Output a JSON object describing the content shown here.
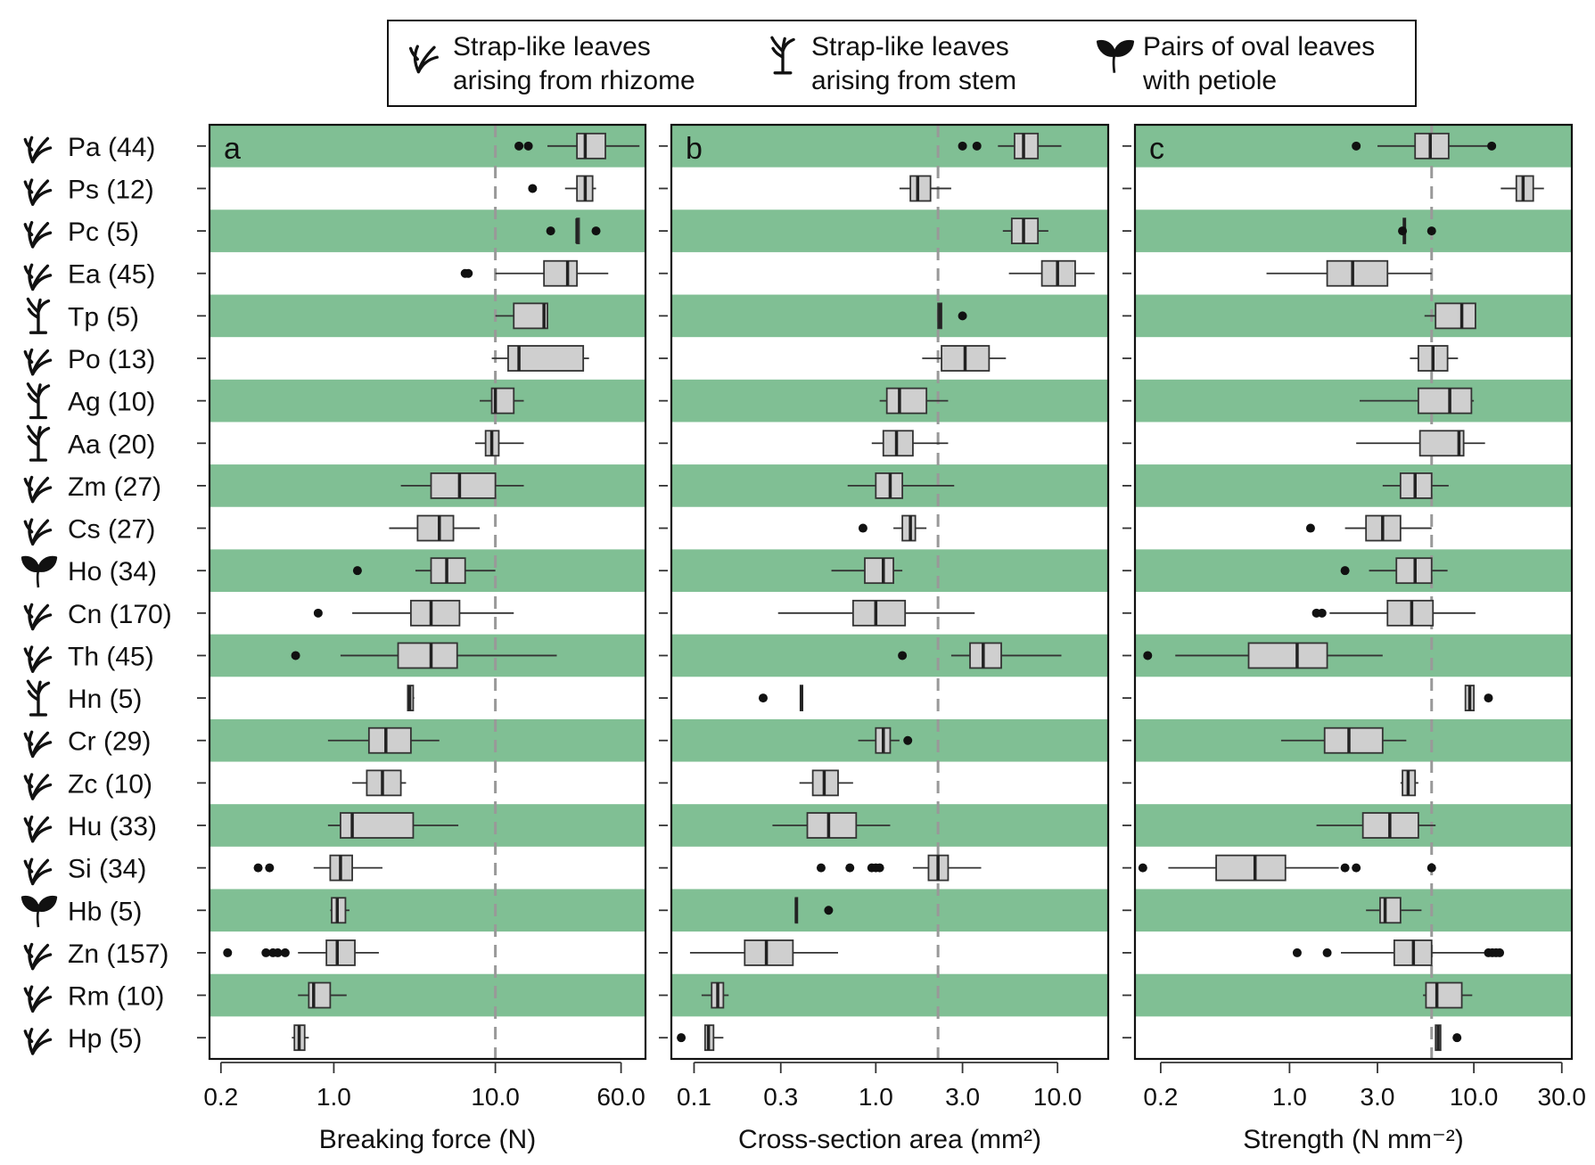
{
  "legend": {
    "items": [
      {
        "icon": "rhizome-leaf-icon",
        "line1": "Strap-like leaves",
        "line2": "arising from rhizome"
      },
      {
        "icon": "stem-leaf-icon",
        "line1": "Strap-like leaves",
        "line2": "arising from stem"
      },
      {
        "icon": "oval-leaf-icon",
        "line1": "Pairs of oval leaves",
        "line2": "with petiole"
      }
    ]
  },
  "colors": {
    "band_green": "#80bf94",
    "box_fill": "#cfcfcf",
    "box_stroke": "#333333",
    "dashed_line": "#999999"
  },
  "chart_data": [
    {
      "panel": "a",
      "type": "boxplot",
      "xlabel": "Breaking force (N)",
      "xscale": "log",
      "xlim": [
        0.17,
        85
      ],
      "xticks": [
        0.2,
        1.0,
        10.0,
        60.0
      ],
      "xtick_labels": [
        "0.2",
        "1.0",
        "10.0",
        "60.0"
      ],
      "reference_line": 10,
      "boxes": [
        {
          "q1": 32,
          "median": 36,
          "q3": 48,
          "lo": 21,
          "hi": 78,
          "out": [
            14,
            16
          ]
        },
        {
          "q1": 32,
          "median": 36,
          "q3": 40,
          "lo": 27,
          "hi": 42,
          "out": [
            17
          ]
        },
        {
          "q1": 32,
          "median": 32,
          "q3": 33,
          "lo": 32,
          "hi": 33,
          "out": [
            22,
            42
          ]
        },
        {
          "q1": 20,
          "median": 28,
          "q3": 32,
          "lo": 10,
          "hi": 50,
          "out": [
            6.5,
            6.8
          ]
        },
        {
          "q1": 13,
          "median": 20,
          "q3": 21,
          "lo": 10,
          "hi": 21,
          "out": []
        },
        {
          "q1": 12,
          "median": 14,
          "q3": 35,
          "lo": 9.5,
          "hi": 38,
          "out": []
        },
        {
          "q1": 9.5,
          "median": 10,
          "q3": 13,
          "lo": 8,
          "hi": 15,
          "out": []
        },
        {
          "q1": 8.7,
          "median": 9.5,
          "q3": 10.5,
          "lo": 7.5,
          "hi": 15,
          "out": []
        },
        {
          "q1": 4,
          "median": 6,
          "q3": 10,
          "lo": 2.6,
          "hi": 15,
          "out": []
        },
        {
          "q1": 3.3,
          "median": 4.5,
          "q3": 5.5,
          "lo": 2.2,
          "hi": 8,
          "out": []
        },
        {
          "q1": 4,
          "median": 5,
          "q3": 6.5,
          "lo": 3.2,
          "hi": 10,
          "out": [
            1.4
          ]
        },
        {
          "q1": 3,
          "median": 4,
          "q3": 6,
          "lo": 1.3,
          "hi": 13,
          "out": [
            0.8
          ]
        },
        {
          "q1": 2.5,
          "median": 4,
          "q3": 5.8,
          "lo": 1.1,
          "hi": 24,
          "out": [
            0.58
          ]
        },
        {
          "q1": 2.87,
          "median": 2.95,
          "q3": 3.1,
          "lo": 2.85,
          "hi": 3.15,
          "out": []
        },
        {
          "q1": 1.65,
          "median": 2.1,
          "q3": 3.0,
          "lo": 0.92,
          "hi": 4.5,
          "out": []
        },
        {
          "q1": 1.6,
          "median": 2.0,
          "q3": 2.6,
          "lo": 1.3,
          "hi": 2.8,
          "out": []
        },
        {
          "q1": 1.1,
          "median": 1.3,
          "q3": 3.1,
          "lo": 0.92,
          "hi": 5.9,
          "out": []
        },
        {
          "q1": 0.95,
          "median": 1.1,
          "q3": 1.3,
          "lo": 0.75,
          "hi": 2.0,
          "out": [
            0.34,
            0.4
          ]
        },
        {
          "q1": 0.97,
          "median": 1.05,
          "q3": 1.18,
          "lo": 0.95,
          "hi": 1.25,
          "out": []
        },
        {
          "q1": 0.9,
          "median": 1.05,
          "q3": 1.35,
          "lo": 0.6,
          "hi": 1.9,
          "out": [
            0.22,
            0.38,
            0.42,
            0.45,
            0.5
          ]
        },
        {
          "q1": 0.7,
          "median": 0.75,
          "q3": 0.95,
          "lo": 0.6,
          "hi": 1.2,
          "out": []
        },
        {
          "q1": 0.57,
          "median": 0.61,
          "q3": 0.66,
          "lo": 0.55,
          "hi": 0.7,
          "out": []
        }
      ]
    },
    {
      "panel": "b",
      "type": "boxplot",
      "xlabel": "Cross-section area (mm²)",
      "xscale": "log",
      "xlim": [
        0.075,
        19
      ],
      "xticks": [
        0.1,
        0.3,
        1.0,
        3.0,
        10.0
      ],
      "xtick_labels": [
        "0.1",
        "0.3",
        "1.0",
        "3.0",
        "10.0"
      ],
      "reference_line": 2.2,
      "boxes": [
        {
          "q1": 5.8,
          "median": 6.5,
          "q3": 7.8,
          "lo": 4.7,
          "hi": 10.5,
          "out": [
            3.0,
            3.6
          ]
        },
        {
          "q1": 1.55,
          "median": 1.7,
          "q3": 2.0,
          "lo": 1.35,
          "hi": 2.6,
          "out": []
        },
        {
          "q1": 5.6,
          "median": 6.5,
          "q3": 7.8,
          "lo": 5.0,
          "hi": 8.9,
          "out": []
        },
        {
          "q1": 8.2,
          "median": 10,
          "q3": 12.5,
          "lo": 5.4,
          "hi": 16,
          "out": []
        },
        {
          "q1": 2.2,
          "median": 2.25,
          "q3": 2.3,
          "lo": 2.2,
          "hi": 2.3,
          "out": [
            3.0
          ]
        },
        {
          "q1": 2.3,
          "median": 3.1,
          "q3": 4.2,
          "lo": 1.8,
          "hi": 5.2,
          "out": []
        },
        {
          "q1": 1.15,
          "median": 1.35,
          "q3": 1.9,
          "lo": 1.05,
          "hi": 2.5,
          "out": []
        },
        {
          "q1": 1.1,
          "median": 1.3,
          "q3": 1.6,
          "lo": 0.95,
          "hi": 2.5,
          "out": []
        },
        {
          "q1": 1.0,
          "median": 1.2,
          "q3": 1.4,
          "lo": 0.7,
          "hi": 2.7,
          "out": []
        },
        {
          "q1": 1.4,
          "median": 1.55,
          "q3": 1.65,
          "lo": 1.25,
          "hi": 1.9,
          "out": [
            0.85
          ]
        },
        {
          "q1": 0.87,
          "median": 1.1,
          "q3": 1.25,
          "lo": 0.57,
          "hi": 1.4,
          "out": []
        },
        {
          "q1": 0.75,
          "median": 1.0,
          "q3": 1.45,
          "lo": 0.29,
          "hi": 3.5,
          "out": []
        },
        {
          "q1": 3.3,
          "median": 3.9,
          "q3": 4.9,
          "lo": 2.6,
          "hi": 10.5,
          "out": [
            1.4
          ]
        },
        {
          "q1": 0.385,
          "median": 0.39,
          "q3": 0.395,
          "lo": 0.385,
          "hi": 0.395,
          "out": [
            0.24
          ]
        },
        {
          "q1": 1.0,
          "median": 1.1,
          "q3": 1.2,
          "lo": 0.8,
          "hi": 1.35,
          "out": [
            1.5
          ]
        },
        {
          "q1": 0.45,
          "median": 0.52,
          "q3": 0.62,
          "lo": 0.38,
          "hi": 0.75,
          "out": []
        },
        {
          "q1": 0.42,
          "median": 0.55,
          "q3": 0.78,
          "lo": 0.27,
          "hi": 1.2,
          "out": []
        },
        {
          "q1": 1.95,
          "median": 2.2,
          "q3": 2.5,
          "lo": 1.6,
          "hi": 3.8,
          "out": [
            0.5,
            0.72,
            0.95,
            1.0,
            1.05
          ]
        },
        {
          "q1": 0.362,
          "median": 0.365,
          "q3": 0.368,
          "lo": 0.36,
          "hi": 0.37,
          "out": [
            0.55
          ]
        },
        {
          "q1": 0.19,
          "median": 0.25,
          "q3": 0.35,
          "lo": 0.095,
          "hi": 0.62,
          "out": []
        },
        {
          "q1": 0.125,
          "median": 0.135,
          "q3": 0.145,
          "lo": 0.11,
          "hi": 0.155,
          "out": []
        },
        {
          "q1": 0.115,
          "median": 0.12,
          "q3": 0.128,
          "lo": 0.115,
          "hi": 0.145,
          "out": [
            0.085
          ]
        }
      ]
    },
    {
      "panel": "c",
      "type": "boxplot",
      "xlabel": "Strength (N mm⁻²)",
      "xscale": "log",
      "xlim": [
        0.145,
        34
      ],
      "xticks": [
        0.2,
        1.0,
        3.0,
        10.0,
        30.0
      ],
      "xtick_labels": [
        "0.2",
        "1.0",
        "3.0",
        "10.0",
        "30.0"
      ],
      "reference_line": 5.9,
      "boxes": [
        {
          "q1": 4.8,
          "median": 5.8,
          "q3": 7.3,
          "lo": 3.0,
          "hi": 12.5,
          "out": [
            2.3,
            12.5
          ]
        },
        {
          "q1": 17,
          "median": 18.5,
          "q3": 21,
          "lo": 14,
          "hi": 24,
          "out": []
        },
        {
          "q1": 4.15,
          "median": 4.2,
          "q3": 4.25,
          "lo": 4.15,
          "hi": 4.25,
          "out": [
            4.1,
            5.9
          ]
        },
        {
          "q1": 1.6,
          "median": 2.2,
          "q3": 3.4,
          "lo": 0.75,
          "hi": 5.9,
          "out": []
        },
        {
          "q1": 6.2,
          "median": 8.6,
          "q3": 10.2,
          "lo": 5.4,
          "hi": 10.2,
          "out": []
        },
        {
          "q1": 5.0,
          "median": 6.0,
          "q3": 7.2,
          "lo": 4.5,
          "hi": 8.2,
          "out": []
        },
        {
          "q1": 5.0,
          "median": 7.4,
          "q3": 9.7,
          "lo": 2.4,
          "hi": 10,
          "out": []
        },
        {
          "q1": 5.1,
          "median": 8.3,
          "q3": 8.8,
          "lo": 2.3,
          "hi": 11.5,
          "out": []
        },
        {
          "q1": 4.0,
          "median": 4.8,
          "q3": 5.9,
          "lo": 3.2,
          "hi": 7.3,
          "out": []
        },
        {
          "q1": 2.6,
          "median": 3.2,
          "q3": 4.0,
          "lo": 2.0,
          "hi": 5.9,
          "out": [
            1.3
          ]
        },
        {
          "q1": 3.8,
          "median": 4.8,
          "q3": 5.9,
          "lo": 2.7,
          "hi": 7.2,
          "out": [
            2.0
          ]
        },
        {
          "q1": 3.4,
          "median": 4.6,
          "q3": 6.0,
          "lo": 1.65,
          "hi": 10.2,
          "out": [
            1.4,
            1.5
          ]
        },
        {
          "q1": 0.6,
          "median": 1.1,
          "q3": 1.6,
          "lo": 0.24,
          "hi": 3.2,
          "out": [
            0.17
          ]
        },
        {
          "q1": 9.0,
          "median": 9.5,
          "q3": 10.0,
          "lo": 9.0,
          "hi": 10.0,
          "out": [
            12
          ]
        },
        {
          "q1": 1.55,
          "median": 2.1,
          "q3": 3.2,
          "lo": 0.9,
          "hi": 4.3,
          "out": []
        },
        {
          "q1": 4.1,
          "median": 4.4,
          "q3": 4.8,
          "lo": 4.0,
          "hi": 5.0,
          "out": []
        },
        {
          "q1": 2.5,
          "median": 3.5,
          "q3": 5.0,
          "lo": 1.4,
          "hi": 6.2,
          "out": []
        },
        {
          "q1": 0.4,
          "median": 0.65,
          "q3": 0.95,
          "lo": 0.22,
          "hi": 1.85,
          "out": [
            0.16,
            2.0,
            2.3,
            5.9
          ]
        },
        {
          "q1": 3.1,
          "median": 3.3,
          "q3": 4.0,
          "lo": 2.6,
          "hi": 5.2,
          "out": []
        },
        {
          "q1": 3.7,
          "median": 4.7,
          "q3": 5.9,
          "lo": 1.9,
          "hi": 11.8,
          "out": [
            1.1,
            1.6,
            12,
            12.6,
            13.2,
            13.8
          ]
        },
        {
          "q1": 5.5,
          "median": 6.3,
          "q3": 8.6,
          "lo": 5.3,
          "hi": 9.8,
          "out": []
        },
        {
          "q1": 6.2,
          "median": 6.4,
          "q3": 6.6,
          "lo": 6.2,
          "hi": 6.6,
          "out": [
            8.1
          ]
        }
      ]
    }
  ],
  "species": [
    {
      "label": "Pa (44)",
      "icon": "rhizome-leaf-icon",
      "band": true
    },
    {
      "label": "Ps (12)",
      "icon": "rhizome-leaf-icon",
      "band": false
    },
    {
      "label": "Pc (5)",
      "icon": "rhizome-leaf-icon",
      "band": true
    },
    {
      "label": "Ea (45)",
      "icon": "rhizome-leaf-icon",
      "band": false
    },
    {
      "label": "Tp (5)",
      "icon": "stem-leaf-icon",
      "band": true
    },
    {
      "label": "Po (13)",
      "icon": "rhizome-leaf-icon",
      "band": false
    },
    {
      "label": "Ag (10)",
      "icon": "stem-leaf-icon",
      "band": true
    },
    {
      "label": "Aa (20)",
      "icon": "stem-leaf-icon",
      "band": false
    },
    {
      "label": "Zm (27)",
      "icon": "rhizome-leaf-icon",
      "band": true
    },
    {
      "label": "Cs (27)",
      "icon": "rhizome-leaf-icon",
      "band": false
    },
    {
      "label": "Ho (34)",
      "icon": "oval-leaf-icon",
      "band": true
    },
    {
      "label": "Cn (170)",
      "icon": "rhizome-leaf-icon",
      "band": false
    },
    {
      "label": "Th (45)",
      "icon": "rhizome-leaf-icon",
      "band": true
    },
    {
      "label": "Hn (5)",
      "icon": "stem-leaf-icon",
      "band": false
    },
    {
      "label": "Cr (29)",
      "icon": "rhizome-leaf-icon",
      "band": true
    },
    {
      "label": "Zc (10)",
      "icon": "rhizome-leaf-icon",
      "band": false
    },
    {
      "label": "Hu (33)",
      "icon": "rhizome-leaf-icon",
      "band": true
    },
    {
      "label": "Si (34)",
      "icon": "rhizome-leaf-icon",
      "band": false
    },
    {
      "label": "Hb (5)",
      "icon": "oval-leaf-icon",
      "band": true
    },
    {
      "label": "Zn (157)",
      "icon": "rhizome-leaf-icon",
      "band": false
    },
    {
      "label": "Rm (10)",
      "icon": "rhizome-leaf-icon",
      "band": true
    },
    {
      "label": "Hp (5)",
      "icon": "rhizome-leaf-icon",
      "band": false
    }
  ]
}
